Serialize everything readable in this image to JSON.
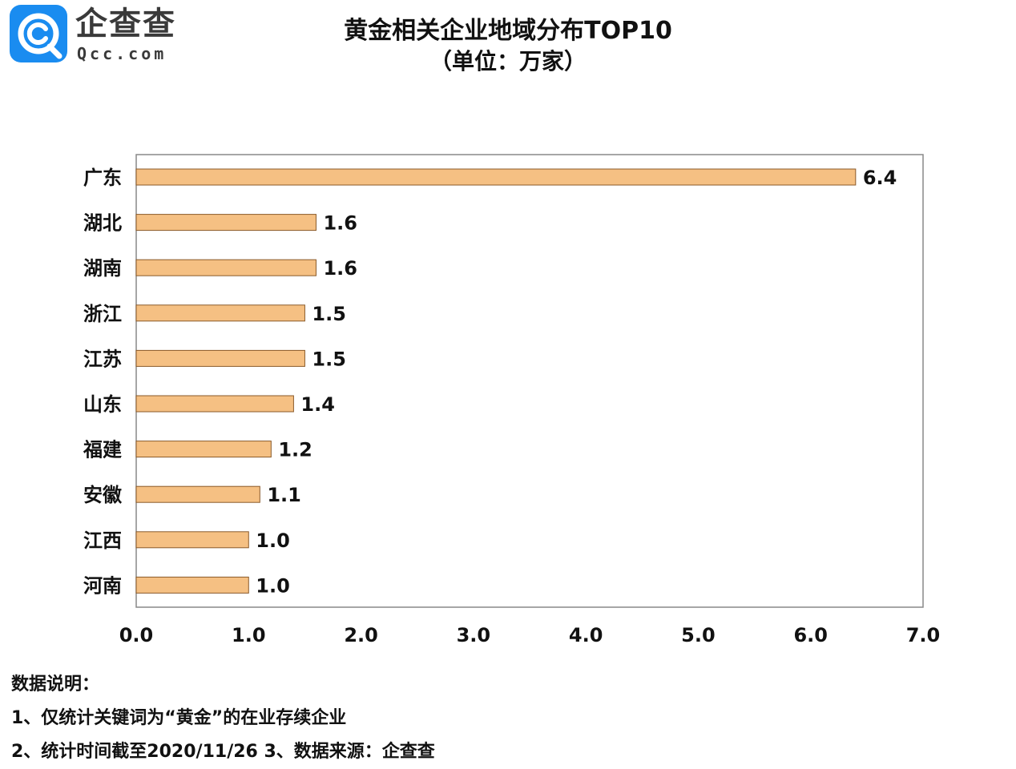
{
  "logo": {
    "cn": "企查查",
    "en": "Qcc.com",
    "accent": "#1a8cf0"
  },
  "header": {
    "title": "黄金相关企业地域分布TOP10",
    "subtitle": "（单位：万家）"
  },
  "chart_data": {
    "type": "bar",
    "orientation": "horizontal",
    "categories": [
      "广东",
      "湖北",
      "湖南",
      "浙江",
      "江苏",
      "山东",
      "福建",
      "安徽",
      "江西",
      "河南"
    ],
    "values": [
      6.4,
      1.6,
      1.6,
      1.5,
      1.5,
      1.4,
      1.2,
      1.1,
      1.0,
      1.0
    ],
    "data_labels": [
      "6.4",
      "1.6",
      "1.6",
      "1.5",
      "1.5",
      "1.4",
      "1.2",
      "1.1",
      "1.0",
      "1.0"
    ],
    "xlim": [
      0,
      7
    ],
    "x_ticks": [
      0,
      1,
      2,
      3,
      4,
      5,
      6,
      7
    ],
    "x_tick_labels": [
      "0.0",
      "1.0",
      "2.0",
      "3.0",
      "4.0",
      "5.0",
      "6.0",
      "7.0"
    ],
    "grid": false,
    "legend": "none",
    "bar_color": "#f5c083",
    "bar_edge_color": "#8a5a2a"
  },
  "notes": {
    "heading": "数据说明：",
    "line1": "1、仅统计关键词为“黄金”的在业存续企业",
    "line2": "2、统计时间截至2020/11/26  3、数据来源：企查查"
  }
}
